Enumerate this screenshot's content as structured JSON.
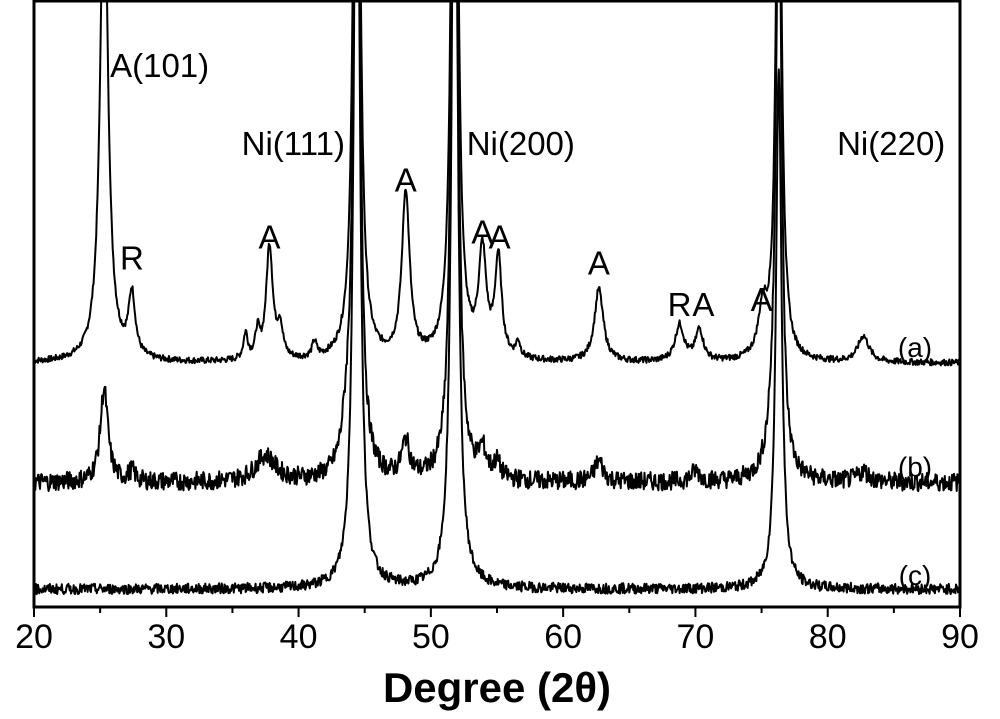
{
  "chart_data": {
    "type": "line",
    "title": "",
    "xlabel": "Degree (2θ)",
    "ylabel": "",
    "xlim": [
      20,
      90
    ],
    "xticks": [
      20,
      30,
      40,
      50,
      60,
      70,
      80,
      90
    ],
    "y_axis_ticks_shown": false,
    "grid": false,
    "legend": "none",
    "series": [
      {
        "name": "(a)",
        "baseline": 0.45,
        "noise": 0.006,
        "peaks": [
          {
            "pos": 25.3,
            "height": 0.97,
            "width": 0.35
          },
          {
            "pos": 27.4,
            "height": 0.12,
            "width": 0.3
          },
          {
            "pos": 36.0,
            "height": 0.05,
            "width": 0.2
          },
          {
            "pos": 36.9,
            "height": 0.05,
            "width": 0.2
          },
          {
            "pos": 37.8,
            "height": 0.22,
            "width": 0.3
          },
          {
            "pos": 38.6,
            "height": 0.06,
            "width": 0.25
          },
          {
            "pos": 41.2,
            "height": 0.03,
            "width": 0.2
          },
          {
            "pos": 44.4,
            "height": 1.8,
            "width": 0.25
          },
          {
            "pos": 48.1,
            "height": 0.32,
            "width": 0.35
          },
          {
            "pos": 51.8,
            "height": 1.8,
            "width": 0.25
          },
          {
            "pos": 53.9,
            "height": 0.2,
            "width": 0.35
          },
          {
            "pos": 55.1,
            "height": 0.19,
            "width": 0.3
          },
          {
            "pos": 56.6,
            "height": 0.03,
            "width": 0.2
          },
          {
            "pos": 62.7,
            "height": 0.14,
            "width": 0.4
          },
          {
            "pos": 68.8,
            "height": 0.07,
            "width": 0.4
          },
          {
            "pos": 70.3,
            "height": 0.06,
            "width": 0.35
          },
          {
            "pos": 75.1,
            "height": 0.09,
            "width": 0.4
          },
          {
            "pos": 76.3,
            "height": 1.2,
            "width": 0.25
          },
          {
            "pos": 82.7,
            "height": 0.05,
            "width": 0.5
          }
        ]
      },
      {
        "name": "(b)",
        "baseline": 0.22,
        "noise": 0.018,
        "peaks": [
          {
            "pos": 25.3,
            "height": 0.18,
            "width": 0.35
          },
          {
            "pos": 27.4,
            "height": 0.02,
            "width": 0.3
          },
          {
            "pos": 37.5,
            "height": 0.05,
            "width": 0.9
          },
          {
            "pos": 43.6,
            "height": 0.06,
            "width": 0.4
          },
          {
            "pos": 44.4,
            "height": 1.8,
            "width": 0.25
          },
          {
            "pos": 48.1,
            "height": 0.07,
            "width": 0.35
          },
          {
            "pos": 51.8,
            "height": 1.8,
            "width": 0.25
          },
          {
            "pos": 53.9,
            "height": 0.05,
            "width": 0.35
          },
          {
            "pos": 55.0,
            "height": 0.03,
            "width": 0.3
          },
          {
            "pos": 62.7,
            "height": 0.04,
            "width": 0.4
          },
          {
            "pos": 70.0,
            "height": 0.02,
            "width": 0.4
          },
          {
            "pos": 75.8,
            "height": 0.06,
            "width": 0.5
          },
          {
            "pos": 76.3,
            "height": 1.2,
            "width": 0.25
          },
          {
            "pos": 82.7,
            "height": 0.02,
            "width": 0.5
          }
        ]
      },
      {
        "name": "(c)",
        "baseline": 0.015,
        "noise": 0.01,
        "peaks": [
          {
            "pos": 44.4,
            "height": 1.8,
            "width": 0.25
          },
          {
            "pos": 51.8,
            "height": 1.8,
            "width": 0.25
          },
          {
            "pos": 76.3,
            "height": 1.0,
            "width": 0.25
          }
        ]
      }
    ],
    "annotations": [
      {
        "text": "A(101)",
        "x": 25.3,
        "y": 1.0
      },
      {
        "text": "R",
        "x": 27.4,
        "y": 0.63
      },
      {
        "text": "A",
        "x": 37.8,
        "y": 0.67
      },
      {
        "text": "Ni(111)",
        "x": 39.6,
        "y": 0.85
      },
      {
        "text": "A",
        "x": 48.1,
        "y": 0.78
      },
      {
        "text": "Ni(200)",
        "x": 56.8,
        "y": 0.85
      },
      {
        "text": "A",
        "x": 53.9,
        "y": 0.68
      },
      {
        "text": "A",
        "x": 55.2,
        "y": 0.67
      },
      {
        "text": "A",
        "x": 62.7,
        "y": 0.62
      },
      {
        "text": "R",
        "x": 68.8,
        "y": 0.54
      },
      {
        "text": "A",
        "x": 70.6,
        "y": 0.54
      },
      {
        "text": "A",
        "x": 75.0,
        "y": 0.55
      },
      {
        "text": "Ni(220)",
        "x": 84.8,
        "y": 0.85
      }
    ]
  }
}
